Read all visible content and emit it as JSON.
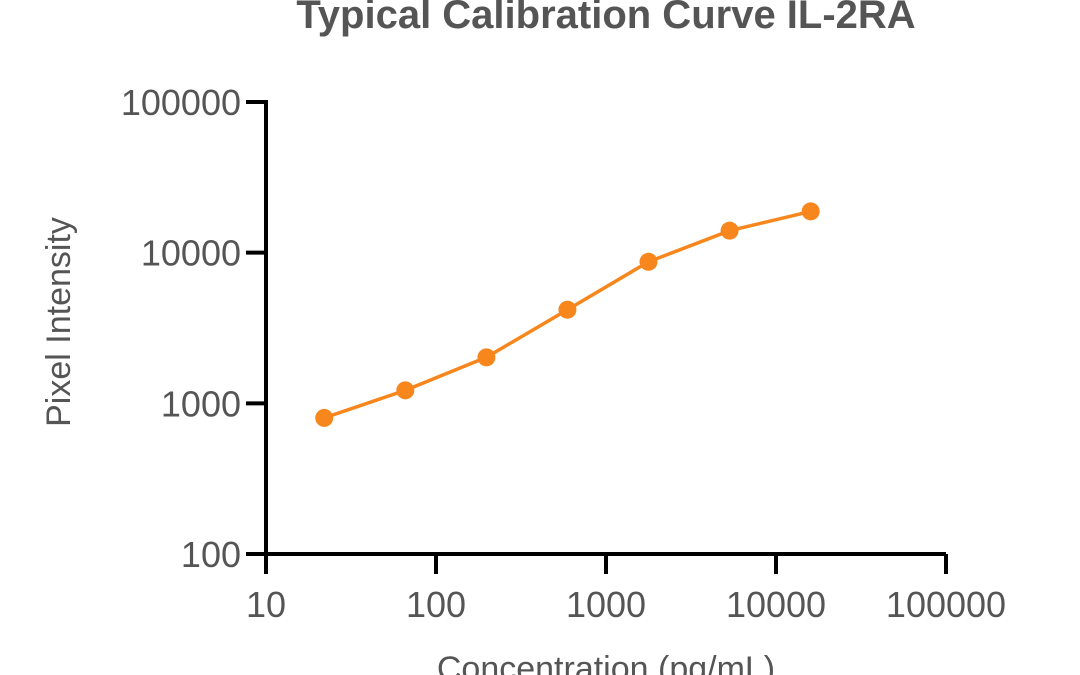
{
  "chart_data": {
    "type": "line",
    "title": "Typical Calibration Curve IL-2RA",
    "xlabel": "Concentration (pg/mL)",
    "ylabel": "Pixel Intensity",
    "x_scale": "log",
    "y_scale": "log",
    "xlim": [
      10,
      100000
    ],
    "ylim": [
      100,
      100000
    ],
    "x_ticks": [
      "10",
      "100",
      "1000",
      "10000",
      "100000"
    ],
    "y_ticks": [
      "100",
      "1000",
      "10000",
      "100000"
    ],
    "grid": false,
    "legend": "none",
    "color": "#f7861c",
    "series": [
      {
        "x": [
          22,
          66,
          198,
          593,
          1778,
          5333,
          16000
        ],
        "y": [
          800,
          1220,
          2020,
          4180,
          8700,
          14000,
          18800
        ]
      }
    ]
  }
}
